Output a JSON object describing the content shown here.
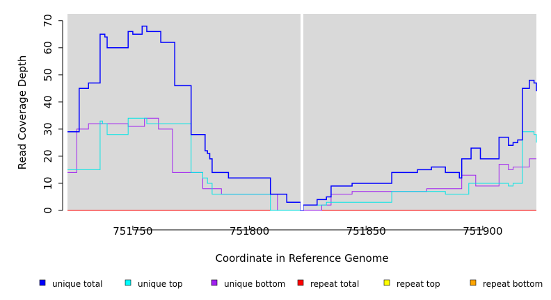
{
  "chart_data": {
    "type": "line",
    "xlabel": "Coordinate in Reference Genome",
    "ylabel": "Read Coverage Depth",
    "xlim": [
      751722,
      751923
    ],
    "ylim": [
      0,
      72.5
    ],
    "x_ticks": [
      751750,
      751800,
      751850,
      751900
    ],
    "y_ticks": [
      0,
      10,
      20,
      30,
      40,
      50,
      60,
      70
    ],
    "gap_x": 751822.5,
    "grid": false,
    "legend_position": "bottom",
    "series": [
      {
        "name": "unique total",
        "color": "#0000ff",
        "steps": [
          [
            751722,
            29
          ],
          [
            751727,
            45
          ],
          [
            751731,
            47
          ],
          [
            751736,
            65
          ],
          [
            751738,
            64
          ],
          [
            751739,
            60
          ],
          [
            751748,
            66
          ],
          [
            751750,
            65
          ],
          [
            751754,
            68
          ],
          [
            751756,
            66
          ],
          [
            751762,
            62
          ],
          [
            751768,
            46
          ],
          [
            751775,
            28
          ],
          [
            751781,
            22
          ],
          [
            751782,
            21
          ],
          [
            751783,
            19
          ],
          [
            751784,
            14
          ],
          [
            751791,
            12
          ],
          [
            751809,
            6
          ],
          [
            751816,
            3
          ],
          [
            751822,
            0
          ],
          [
            751823,
            2
          ],
          [
            751829,
            4
          ],
          [
            751833,
            5
          ],
          [
            751835,
            9
          ],
          [
            751844,
            10
          ],
          [
            751861,
            14
          ],
          [
            751872,
            15
          ],
          [
            751878,
            16
          ],
          [
            751884,
            14
          ],
          [
            751890,
            12
          ],
          [
            751891,
            19
          ],
          [
            751895,
            23
          ],
          [
            751899,
            19
          ],
          [
            751907,
            27
          ],
          [
            751911,
            24
          ],
          [
            751913,
            25
          ],
          [
            751915,
            26
          ],
          [
            751917,
            45
          ],
          [
            751920,
            48
          ],
          [
            751922,
            47
          ],
          [
            751923,
            44
          ]
        ]
      },
      {
        "name": "unique top",
        "color": "#00e5e5",
        "steps": [
          [
            751722,
            15
          ],
          [
            751736,
            33
          ],
          [
            751737,
            32
          ],
          [
            751739,
            28
          ],
          [
            751748,
            34
          ],
          [
            751756,
            32
          ],
          [
            751775,
            14
          ],
          [
            751780,
            12
          ],
          [
            751782,
            10
          ],
          [
            751784,
            6
          ],
          [
            751791,
            6
          ],
          [
            751809,
            0
          ],
          [
            751823,
            2
          ],
          [
            751829,
            2
          ],
          [
            751833,
            3
          ],
          [
            751861,
            7
          ],
          [
            751876,
            7
          ],
          [
            751884,
            6
          ],
          [
            751891,
            6
          ],
          [
            751894,
            10
          ],
          [
            751907,
            10
          ],
          [
            751911,
            9
          ],
          [
            751913,
            10
          ],
          [
            751917,
            29
          ],
          [
            751922,
            28
          ],
          [
            751923,
            25
          ]
        ]
      },
      {
        "name": "unique bottom",
        "color": "#a020f0",
        "steps": [
          [
            751722,
            14
          ],
          [
            751726,
            30
          ],
          [
            751731,
            32
          ],
          [
            751748,
            31
          ],
          [
            751755,
            34
          ],
          [
            751761,
            30
          ],
          [
            751767,
            14
          ],
          [
            751780,
            8
          ],
          [
            751788,
            6
          ],
          [
            751809,
            6
          ],
          [
            751812,
            0
          ],
          [
            751822,
            0
          ],
          [
            751831,
            2
          ],
          [
            751835,
            6
          ],
          [
            751844,
            7
          ],
          [
            751876,
            8
          ],
          [
            751890,
            8
          ],
          [
            751891,
            13
          ],
          [
            751897,
            9
          ],
          [
            751907,
            17
          ],
          [
            751911,
            15
          ],
          [
            751913,
            16
          ],
          [
            751920,
            19
          ],
          [
            751923,
            19
          ]
        ]
      },
      {
        "name": "repeat total",
        "color": "#ff0000",
        "steps": [
          [
            751722,
            0
          ],
          [
            751923,
            0
          ]
        ]
      },
      {
        "name": "repeat top",
        "color": "#ffff00",
        "steps": [
          [
            751722,
            0
          ],
          [
            751923,
            0
          ]
        ]
      },
      {
        "name": "repeat bottom",
        "color": "#ffa500",
        "steps": [
          [
            751722,
            0
          ],
          [
            751923,
            0
          ]
        ]
      }
    ]
  },
  "legend": {
    "items": [
      {
        "label": "unique total",
        "color": "#0000ff"
      },
      {
        "label": "unique top",
        "color": "#00ffff"
      },
      {
        "label": "unique bottom",
        "color": "#a020f0"
      },
      {
        "label": "repeat total",
        "color": "#ff0000"
      },
      {
        "label": "repeat top",
        "color": "#ffff00"
      },
      {
        "label": "repeat bottom",
        "color": "#ffa500"
      }
    ]
  },
  "colors": {
    "plot_background": "#d9d9d9",
    "gap_line": "#ffffff"
  }
}
